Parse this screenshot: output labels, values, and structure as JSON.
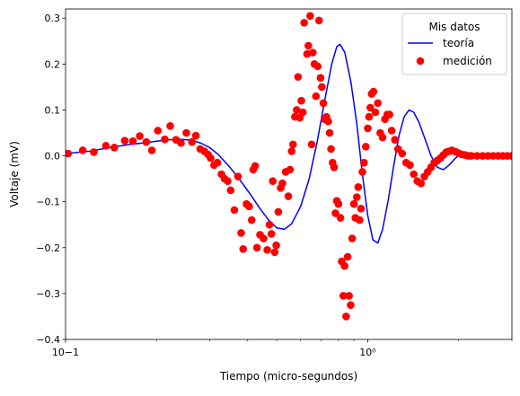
{
  "chart_data": {
    "type": "line",
    "title": "",
    "xlabel": "Tiempo (micro-segundos)",
    "ylabel": "Voltaje (mV)",
    "xscale": "log",
    "xlim": [
      0.1,
      3.0
    ],
    "ylim": [
      -0.4,
      0.32
    ],
    "grid": false,
    "x_ticks": [
      {
        "value": 0.1,
        "label": "10−1"
      },
      {
        "value": 1.0,
        "label": "10⁰"
      }
    ],
    "y_ticks": [
      {
        "value": -0.4,
        "label": "−0.4"
      },
      {
        "value": -0.3,
        "label": "−0.3"
      },
      {
        "value": -0.2,
        "label": "−0.2"
      },
      {
        "value": -0.1,
        "label": "−0.1"
      },
      {
        "value": 0.0,
        "label": "0.0"
      },
      {
        "value": 0.1,
        "label": "0.1"
      },
      {
        "value": 0.2,
        "label": "0.2"
      },
      {
        "value": 0.3,
        "label": "0.3"
      }
    ],
    "legend": {
      "title": "Mis datos",
      "placement": "top-right",
      "entries": [
        {
          "label": "teoría",
          "marker": "line",
          "color": "#0000ff"
        },
        {
          "label": "medición",
          "marker": "circle",
          "color": "#ff0000"
        }
      ]
    },
    "series": [
      {
        "name": "teoría",
        "style": "line",
        "color": "#0000ff",
        "points": [
          [
            0.1,
            0.005
          ],
          [
            0.12,
            0.01
          ],
          [
            0.14,
            0.018
          ],
          [
            0.16,
            0.024
          ],
          [
            0.18,
            0.028
          ],
          [
            0.2,
            0.032
          ],
          [
            0.22,
            0.035
          ],
          [
            0.24,
            0.036
          ],
          [
            0.26,
            0.034
          ],
          [
            0.28,
            0.028
          ],
          [
            0.3,
            0.018
          ],
          [
            0.32,
            0.003
          ],
          [
            0.35,
            -0.025
          ],
          [
            0.38,
            -0.055
          ],
          [
            0.41,
            -0.085
          ],
          [
            0.44,
            -0.115
          ],
          [
            0.47,
            -0.14
          ],
          [
            0.5,
            -0.157
          ],
          [
            0.53,
            -0.16
          ],
          [
            0.56,
            -0.148
          ],
          [
            0.6,
            -0.11
          ],
          [
            0.64,
            -0.05
          ],
          [
            0.68,
            0.03
          ],
          [
            0.72,
            0.12
          ],
          [
            0.76,
            0.2
          ],
          [
            0.79,
            0.238
          ],
          [
            0.81,
            0.243
          ],
          [
            0.84,
            0.225
          ],
          [
            0.88,
            0.16
          ],
          [
            0.92,
            0.07
          ],
          [
            0.96,
            -0.04
          ],
          [
            1.0,
            -0.13
          ],
          [
            1.04,
            -0.183
          ],
          [
            1.08,
            -0.19
          ],
          [
            1.12,
            -0.16
          ],
          [
            1.17,
            -0.095
          ],
          [
            1.22,
            -0.02
          ],
          [
            1.27,
            0.045
          ],
          [
            1.32,
            0.085
          ],
          [
            1.37,
            0.1
          ],
          [
            1.42,
            0.095
          ],
          [
            1.48,
            0.072
          ],
          [
            1.55,
            0.035
          ],
          [
            1.62,
            0.0
          ],
          [
            1.7,
            -0.025
          ],
          [
            1.78,
            -0.03
          ],
          [
            1.86,
            -0.02
          ],
          [
            1.95,
            -0.005
          ],
          [
            2.05,
            0.005
          ],
          [
            2.2,
            0.006
          ],
          [
            2.4,
            0.002
          ],
          [
            2.7,
            0.0
          ],
          [
            3.0,
            0.0
          ]
        ]
      },
      {
        "name": "medición",
        "style": "scatter",
        "color": "#ff0000",
        "points": [
          [
            0.102,
            0.005
          ],
          [
            0.114,
            0.012
          ],
          [
            0.124,
            0.008
          ],
          [
            0.136,
            0.022
          ],
          [
            0.145,
            0.018
          ],
          [
            0.157,
            0.033
          ],
          [
            0.167,
            0.032
          ],
          [
            0.176,
            0.043
          ],
          [
            0.185,
            0.03
          ],
          [
            0.193,
            0.012
          ],
          [
            0.202,
            0.055
          ],
          [
            0.213,
            0.036
          ],
          [
            0.222,
            0.065
          ],
          [
            0.232,
            0.035
          ],
          [
            0.241,
            0.028
          ],
          [
            0.251,
            0.05
          ],
          [
            0.262,
            0.03
          ],
          [
            0.27,
            0.044
          ],
          [
            0.279,
            0.015
          ],
          [
            0.288,
            0.01
          ],
          [
            0.296,
            0.003
          ],
          [
            0.302,
            -0.005
          ],
          [
            0.31,
            -0.02
          ],
          [
            0.318,
            -0.015
          ],
          [
            0.328,
            -0.04
          ],
          [
            0.336,
            -0.05
          ],
          [
            0.344,
            -0.055
          ],
          [
            0.352,
            -0.075
          ],
          [
            0.362,
            -0.118
          ],
          [
            0.372,
            -0.045
          ],
          [
            0.381,
            -0.168
          ],
          [
            0.387,
            -0.203
          ],
          [
            0.397,
            -0.105
          ],
          [
            0.405,
            -0.11
          ],
          [
            0.413,
            -0.14
          ],
          [
            0.418,
            -0.03
          ],
          [
            0.424,
            -0.022
          ],
          [
            0.43,
            -0.2
          ],
          [
            0.44,
            -0.172
          ],
          [
            0.452,
            -0.18
          ],
          [
            0.465,
            -0.205
          ],
          [
            0.473,
            -0.15
          ],
          [
            0.48,
            -0.17
          ],
          [
            0.485,
            -0.055
          ],
          [
            0.492,
            -0.21
          ],
          [
            0.498,
            -0.195
          ],
          [
            0.506,
            -0.122
          ],
          [
            0.515,
            -0.07
          ],
          [
            0.522,
            -0.06
          ],
          [
            0.535,
            -0.035
          ],
          [
            0.546,
            -0.088
          ],
          [
            0.553,
            -0.03
          ],
          [
            0.56,
            0.01
          ],
          [
            0.566,
            0.025
          ],
          [
            0.574,
            0.085
          ],
          [
            0.582,
            0.1
          ],
          [
            0.588,
            0.172
          ],
          [
            0.596,
            0.083
          ],
          [
            0.603,
            0.12
          ],
          [
            0.61,
            0.095
          ],
          [
            0.616,
            0.29
          ],
          [
            0.63,
            0.222
          ],
          [
            0.636,
            0.24
          ],
          [
            0.645,
            0.305
          ],
          [
            0.652,
            0.025
          ],
          [
            0.658,
            0.225
          ],
          [
            0.666,
            0.2
          ],
          [
            0.674,
            0.13
          ],
          [
            0.683,
            0.195
          ],
          [
            0.69,
            0.295
          ],
          [
            0.698,
            0.17
          ],
          [
            0.705,
            0.15
          ],
          [
            0.713,
            0.115
          ],
          [
            0.72,
            0.08
          ],
          [
            0.73,
            0.085
          ],
          [
            0.74,
            0.075
          ],
          [
            0.748,
            0.05
          ],
          [
            0.756,
            0.015
          ],
          [
            0.765,
            -0.015
          ],
          [
            0.774,
            -0.025
          ],
          [
            0.782,
            -0.125
          ],
          [
            0.79,
            -0.098
          ],
          [
            0.8,
            -0.105
          ],
          [
            0.812,
            -0.135
          ],
          [
            0.82,
            -0.23
          ],
          [
            0.83,
            -0.305
          ],
          [
            0.838,
            -0.24
          ],
          [
            0.848,
            -0.35
          ],
          [
            0.858,
            -0.22
          ],
          [
            0.867,
            -0.305
          ],
          [
            0.878,
            -0.325
          ],
          [
            0.888,
            -0.18
          ],
          [
            0.9,
            -0.105
          ],
          [
            0.91,
            -0.135
          ],
          [
            0.92,
            -0.09
          ],
          [
            0.93,
            -0.068
          ],
          [
            0.94,
            -0.14
          ],
          [
            0.95,
            -0.115
          ],
          [
            0.96,
            -0.035
          ],
          [
            0.972,
            -0.015
          ],
          [
            0.985,
            0.02
          ],
          [
            1.0,
            0.06
          ],
          [
            1.01,
            0.085
          ],
          [
            1.02,
            0.105
          ],
          [
            1.03,
            0.135
          ],
          [
            1.045,
            0.14
          ],
          [
            1.06,
            0.095
          ],
          [
            1.08,
            0.115
          ],
          [
            1.1,
            0.05
          ],
          [
            1.12,
            0.04
          ],
          [
            1.14,
            0.08
          ],
          [
            1.16,
            0.09
          ],
          [
            1.18,
            0.09
          ],
          [
            1.2,
            0.055
          ],
          [
            1.23,
            0.035
          ],
          [
            1.26,
            0.015
          ],
          [
            1.3,
            0.005
          ],
          [
            1.34,
            -0.015
          ],
          [
            1.38,
            -0.02
          ],
          [
            1.42,
            -0.04
          ],
          [
            1.46,
            -0.055
          ],
          [
            1.5,
            -0.06
          ],
          [
            1.54,
            -0.045
          ],
          [
            1.58,
            -0.035
          ],
          [
            1.62,
            -0.025
          ],
          [
            1.66,
            -0.015
          ],
          [
            1.7,
            -0.01
          ],
          [
            1.74,
            -0.005
          ],
          [
            1.78,
            0.002
          ],
          [
            1.82,
            0.008
          ],
          [
            1.86,
            0.01
          ],
          [
            1.9,
            0.012
          ],
          [
            1.95,
            0.009
          ],
          [
            2.0,
            0.006
          ],
          [
            2.05,
            0.003
          ],
          [
            2.1,
            0.002
          ],
          [
            2.15,
            0.0
          ],
          [
            2.2,
            0.0
          ],
          [
            2.3,
            0.0
          ],
          [
            2.4,
            0.0
          ],
          [
            2.5,
            0.0
          ],
          [
            2.6,
            0.0
          ],
          [
            2.7,
            0.0
          ],
          [
            2.8,
            0.0
          ],
          [
            2.9,
            0.0
          ],
          [
            3.0,
            0.0
          ]
        ]
      }
    ]
  }
}
